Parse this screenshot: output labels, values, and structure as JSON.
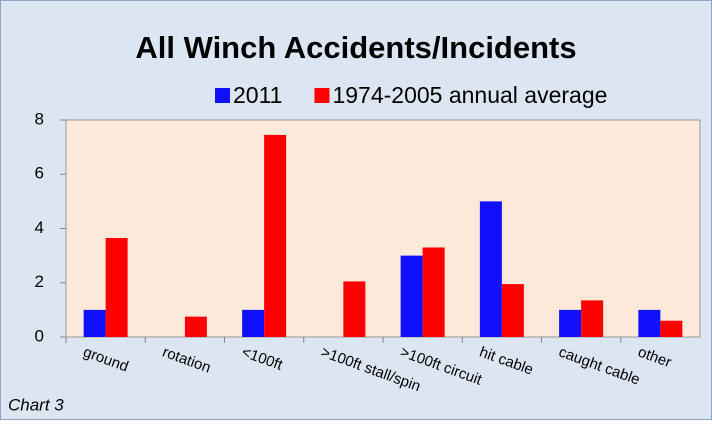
{
  "chart_data": {
    "type": "bar",
    "title": "All Winch Accidents/Incidents",
    "categories": [
      "ground",
      "rotation",
      "<100ft",
      ">100ft stall/spin",
      ">100ft circuit",
      "hit cable",
      "caught cable",
      "other"
    ],
    "series": [
      {
        "name": "2011",
        "color": "#1010ff",
        "values": [
          1,
          0,
          1,
          0,
          3,
          5,
          1,
          1
        ]
      },
      {
        "name": "1974-2005 annual average",
        "color": "#ff0000",
        "values": [
          3.65,
          0.75,
          7.45,
          2.05,
          3.3,
          1.95,
          1.35,
          0.6
        ]
      }
    ],
    "ylim": [
      0,
      8
    ],
    "yticks": [
      0,
      2,
      4,
      6,
      8
    ],
    "grid": false,
    "legend": "top",
    "footnote": "Chart 3"
  }
}
